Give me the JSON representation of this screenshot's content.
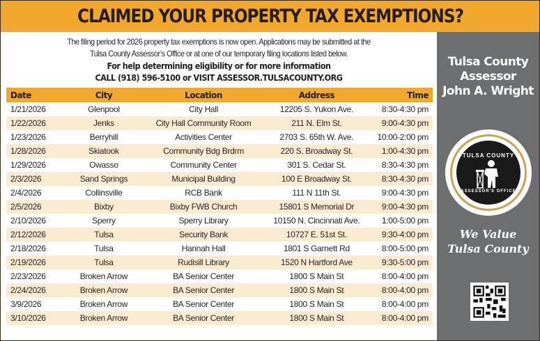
{
  "banner": {
    "title": "CLAIMED YOUR PROPERTY TAX EXEMPTIONS?"
  },
  "intro": {
    "line1": "The filing period for 2026 property tax exemptions is now open. Applications may be submitted at the",
    "line2": "Tulsa County Assessor’s Office or at one of our temporary filing locations listed below.",
    "help": "For help determining eligibility or for more information",
    "contact": "CALL (918) 596-5100 or VISIT ASSESSOR.TULSACOUNTY.ORG"
  },
  "table": {
    "headers": [
      "Date",
      "City",
      "Location",
      "Address",
      "Time"
    ],
    "rows": [
      [
        "1/21/2026",
        "Glenpool",
        "City Hall",
        "12205 S. Yukon Ave.",
        "8:30-4:30 pm"
      ],
      [
        "1/22/2026",
        "Jenks",
        "City Hall Community Room",
        "211 N. Elm St.",
        "9:00-4:30 pm"
      ],
      [
        "1/23/2026",
        "Berryhill",
        "Activities Center",
        "2703 S. 65th W. Ave.",
        "10:00-2:00 pm"
      ],
      [
        "1/28/2026",
        "Skiatook",
        "Community Bdg Brdrm",
        "220 S. Broadway St.",
        "1:00-4:30 pm"
      ],
      [
        "1/29/2026",
        "Owasso",
        "Community Center",
        "301 S. Cedar St.",
        "8:30-4:30 pm"
      ],
      [
        "2/3/2026",
        "Sand Springs",
        "Municipal Building",
        "100 E Broadway St.",
        "8:30-4:30 pm"
      ],
      [
        "2/4/2026",
        "Collinsville",
        "RCB Bank",
        "111 N 11th St.",
        "9:00-4:30 pm"
      ],
      [
        "2/5/2026",
        "Bixby",
        "Bixby FWB Church",
        "15801 S Memorial Dr",
        "9:00-4:30 pm"
      ],
      [
        "2/10/2026",
        "Sperry",
        "Sperry Library",
        "10150 N. Cincinnati Ave.",
        "1:00-5:00 pm"
      ],
      [
        "2/12/2026",
        "Tulsa",
        "Security Bank",
        "10727 E. 51st St.",
        "9:30-4:00 pm"
      ],
      [
        "2/18/2026",
        "Tulsa",
        "Hannah Hall",
        "1801 S Garnett Rd",
        "8:00-5:00 pm"
      ],
      [
        "2/19/2026",
        "Tulsa",
        "Rudisill Library",
        "1520 N Hartford Ave",
        "9:30-5:00 pm"
      ],
      [
        "2/23/2026",
        "Broken Arrow",
        "BA Senior Center",
        "1800 S Main St",
        "8:00-4:00 pm"
      ],
      [
        "2/24/2026",
        "Broken Arrow",
        "BA Senior Center",
        "1800 S Main St",
        "8:00-4:00 pm"
      ],
      [
        "3/9/2026",
        "Broken Arrow",
        "BA Senior Center",
        "1800 S Main St",
        "8:00-4:00 pm"
      ],
      [
        "3/10/2026",
        "Broken Arrow",
        "BA Senior Center",
        "1800 S Main St",
        "8:00-4:00 pm"
      ]
    ]
  },
  "sidebar": {
    "title_line1": "Tulsa County",
    "title_line2": "Assessor",
    "title_line3": "John  A. Wright",
    "seal_top": "TULSA COUNTY",
    "seal_bottom": "ASSESSOR'S OFFICE",
    "slogan_line1": "We Value",
    "slogan_line2": "Tulsa County",
    "qr_icon": "qr-code"
  },
  "colors": {
    "accent": "#f2a72d",
    "row_alt": "#fbecd1",
    "sidebar": "#6d6e70",
    "text": "#231f20"
  }
}
